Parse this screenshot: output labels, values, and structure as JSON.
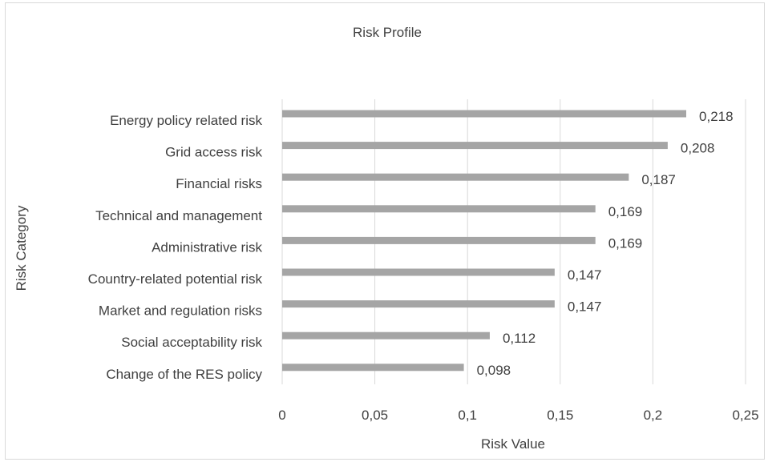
{
  "chart_data": {
    "type": "bar",
    "orientation": "horizontal",
    "title": "Risk Profile",
    "xlabel": "Risk Value",
    "ylabel": "Risk Category",
    "categories": [
      "Energy policy related risk",
      "Grid access risk",
      "Financial risks",
      "Technical and management",
      "Administrative risk",
      "Country-related potential risk",
      "Market and regulation risks",
      "Social acceptability risk",
      "Change of the RES policy"
    ],
    "values": [
      0.218,
      0.208,
      0.187,
      0.169,
      0.169,
      0.147,
      0.147,
      0.112,
      0.098
    ],
    "value_labels": [
      "0,218",
      "0,208",
      "0,187",
      "0,169",
      "0,169",
      "0,147",
      "0,147",
      "0,112",
      "0,098"
    ],
    "xlim": [
      0,
      0.25
    ],
    "ticks": [
      0,
      0.05,
      0.1,
      0.15,
      0.2,
      0.25
    ],
    "tick_labels": [
      "0",
      "0,05",
      "0,1",
      "0,15",
      "0,2",
      "0,25"
    ],
    "grid": true,
    "legend": "none",
    "colors": {
      "bar": "#a5a5a5",
      "grid": "#d9d9d9",
      "text": "#404040"
    }
  }
}
